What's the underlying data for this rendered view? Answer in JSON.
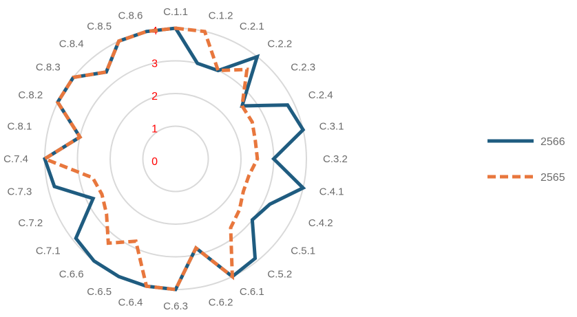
{
  "chart_data": {
    "type": "radar",
    "categories": [
      "C.1.1",
      "C.1.2",
      "C.2.1",
      "C.2.2",
      "C.2.3",
      "C.2.4",
      "C.3.1",
      "C.3.2",
      "C.4.1",
      "C.4.2",
      "C.5.1",
      "C.5.2",
      "C.6.1",
      "C.6.2",
      "C.6.3",
      "C.6.4",
      "C.6.5",
      "C.6.6",
      "C.7.1",
      "C.7.2",
      "C.7.3",
      "C.7.4",
      "C.8.1",
      "C.8.2",
      "C.8.3",
      "C.8.4",
      "C.8.5",
      "C.8.6"
    ],
    "rlim": [
      0,
      4
    ],
    "ticks": [
      "0",
      "1",
      "2",
      "3",
      "4"
    ],
    "grid": true,
    "legend_position": "right",
    "series": [
      {
        "name": "2566",
        "color": "#1f5c80",
        "style": "solid",
        "values": [
          4,
          3,
          3,
          4,
          2.6,
          3.8,
          4,
          3,
          4,
          3.2,
          3,
          3.9,
          4,
          2.8,
          4,
          4,
          4,
          4,
          3.9,
          2.8,
          3.8,
          4,
          3,
          4,
          4,
          3.4,
          4,
          4
        ]
      },
      {
        "name": "2565",
        "color": "#e8773d",
        "style": "dashed",
        "values": [
          4,
          4,
          3,
          3.5,
          2.6,
          2.6,
          2.5,
          2.5,
          2.3,
          2.3,
          2.5,
          2.7,
          4,
          2.8,
          4,
          4,
          2.8,
          3.3,
          2.7,
          2.5,
          2.6,
          4,
          3,
          4,
          4,
          3.4,
          4,
          4
        ]
      }
    ]
  }
}
